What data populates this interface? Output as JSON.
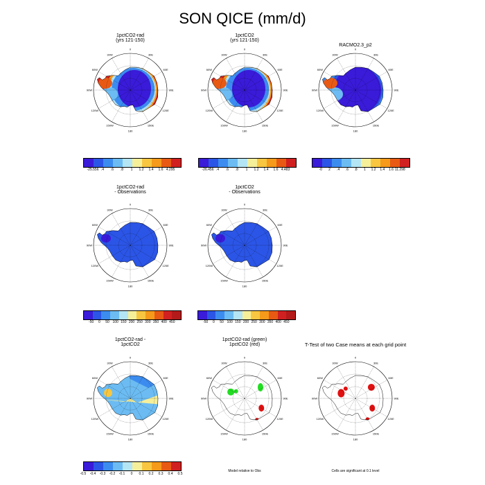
{
  "title": "SON QICE (mm/d)",
  "panels": {
    "p1": {
      "title_line1": "1pctCO2-rad",
      "title_line2": "(yrs 121-150)"
    },
    "p2": {
      "title_line1": "1pctCO2",
      "title_line2": "(yrs 121-150)"
    },
    "p3": {
      "title_line1": "RACMO2.3_p2",
      "title_line2": ""
    },
    "p4": {
      "title_line1": "1pctCO2-rad",
      "title_line2": "- Observations"
    },
    "p5": {
      "title_line1": "1pctCO2",
      "title_line2": "- Observations"
    },
    "p7": {
      "title_line1": "1pctCO2-rad -",
      "title_line2": "1pctCO2"
    },
    "p8": {
      "title_line1": "1pctCO2-rad (green)",
      "title_line2": "1pctCO2 (red)"
    },
    "p9": {
      "title_line1": "T-Test of two Case means at each grid point",
      "title_line2": ""
    }
  },
  "longitude_labels": [
    "0",
    "30E",
    "60E",
    "90E",
    "120E",
    "150E",
    "180",
    "150W",
    "120W",
    "90W",
    "60W",
    "30W"
  ],
  "colorbars": {
    "cb1": [
      "-25.556",
      ".4",
      ".6",
      ".8",
      "1",
      "1.2",
      "1.4",
      "1.6",
      "4.295"
    ],
    "cb2": [
      "-26.456",
      ".4",
      ".6",
      ".8",
      "1",
      "1.2",
      "1.4",
      "1.6",
      "4.483"
    ],
    "cb3": [
      "-0",
      "2",
      ".4",
      ".6",
      ".8",
      "1",
      "1.2",
      "1.4",
      "1.6",
      "11.298"
    ],
    "cb4": [
      "-50",
      "0",
      "50",
      "100",
      "150",
      "200",
      "250",
      "300",
      "350",
      "400",
      "450"
    ],
    "cb5": [
      "-50",
      "0",
      "50",
      "100",
      "150",
      "200",
      "250",
      "300",
      "350",
      "400",
      "450"
    ],
    "cb7": [
      "-0.5",
      "-0.4",
      "-0.3",
      "-0.2",
      "-0.1",
      "0",
      "0.1",
      "0.2",
      "0.3",
      "0.4",
      "0.5"
    ]
  },
  "colors": {
    "cmap_abs": [
      "#3a1bd9",
      "#2b55e6",
      "#3c8cf0",
      "#6cbcf3",
      "#b4e5f5",
      "#f6ef9a",
      "#f8c640",
      "#f59a1a",
      "#e85a14",
      "#d12020"
    ],
    "cmap_diff": [
      "#3a1bd9",
      "#2b55e6",
      "#3c8cf0",
      "#6cbcf3",
      "#b4e5f5",
      "#f6ef9a",
      "#f8c640",
      "#f59a1a",
      "#e85a14",
      "#d12020",
      "#b51a1a"
    ],
    "cmap_anom": [
      "#3a1bd9",
      "#2b55e6",
      "#3c8cf0",
      "#6cbcf3",
      "#b4e5f5",
      "#f6ef9a",
      "#f8c640",
      "#f59a1a",
      "#e85a14",
      "#d12020"
    ],
    "sig_green": "#22dd22",
    "sig_red": "#e01010"
  },
  "notes": {
    "p8": "Model relative to Obs",
    "p9": "Cells are significant at 0.1 level"
  }
}
